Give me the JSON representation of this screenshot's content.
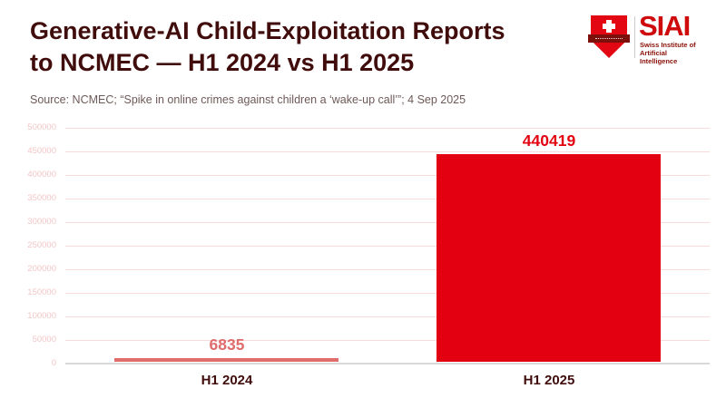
{
  "header": {
    "title_line1": "Generative-AI Child-Exploitation Reports",
    "title_line2": "to NCMEC — H1 2024 vs H1 2025",
    "source": "Source: NCMEC; “Spike in online crimes against children a ‘wake-up call’”; 4 Sep 2025"
  },
  "logo": {
    "acronym": "SIAI",
    "subtitle_line1": "Swiss Institute of",
    "subtitle_line2": "Artificial Intelligence",
    "shield_color": "#e30613",
    "banner_color": "#7e100c",
    "acronym_color": "#cf0a0c",
    "subtitle_color": "#8a1008"
  },
  "chart_data": {
    "type": "bar",
    "title": "Generative-AI Child-Exploitation Reports to NCMEC — H1 2024 vs H1 2025",
    "categories": [
      "H1 2024",
      "H1 2025"
    ],
    "values": [
      6835,
      440419
    ],
    "value_labels": [
      "6835",
      "440419"
    ],
    "bar_colors": [
      "#e06c6c",
      "#e30011"
    ],
    "value_label_colors": [
      "#e06c6c",
      "#e30011"
    ],
    "xlabel": "",
    "ylabel": "",
    "ylim": [
      0,
      500000
    ],
    "yticks": [
      0,
      50000,
      100000,
      150000,
      200000,
      250000,
      300000,
      350000,
      400000,
      450000,
      500000
    ],
    "ytick_labels": [
      "0",
      "50000",
      "100000",
      "150000",
      "200000",
      "250000",
      "300000",
      "350000",
      "400000",
      "450000",
      "500000"
    ],
    "grid": "horizontal",
    "legend_position": "none"
  },
  "colors": {
    "background": "#ffffff",
    "title_text": "#400d0c",
    "source_text": "#6e5a58",
    "gridline": "#f8dcdc",
    "ytick_text": "#f3c6c6",
    "axis_line": "#d9d9d9",
    "xtick_text": "#400d0c"
  }
}
